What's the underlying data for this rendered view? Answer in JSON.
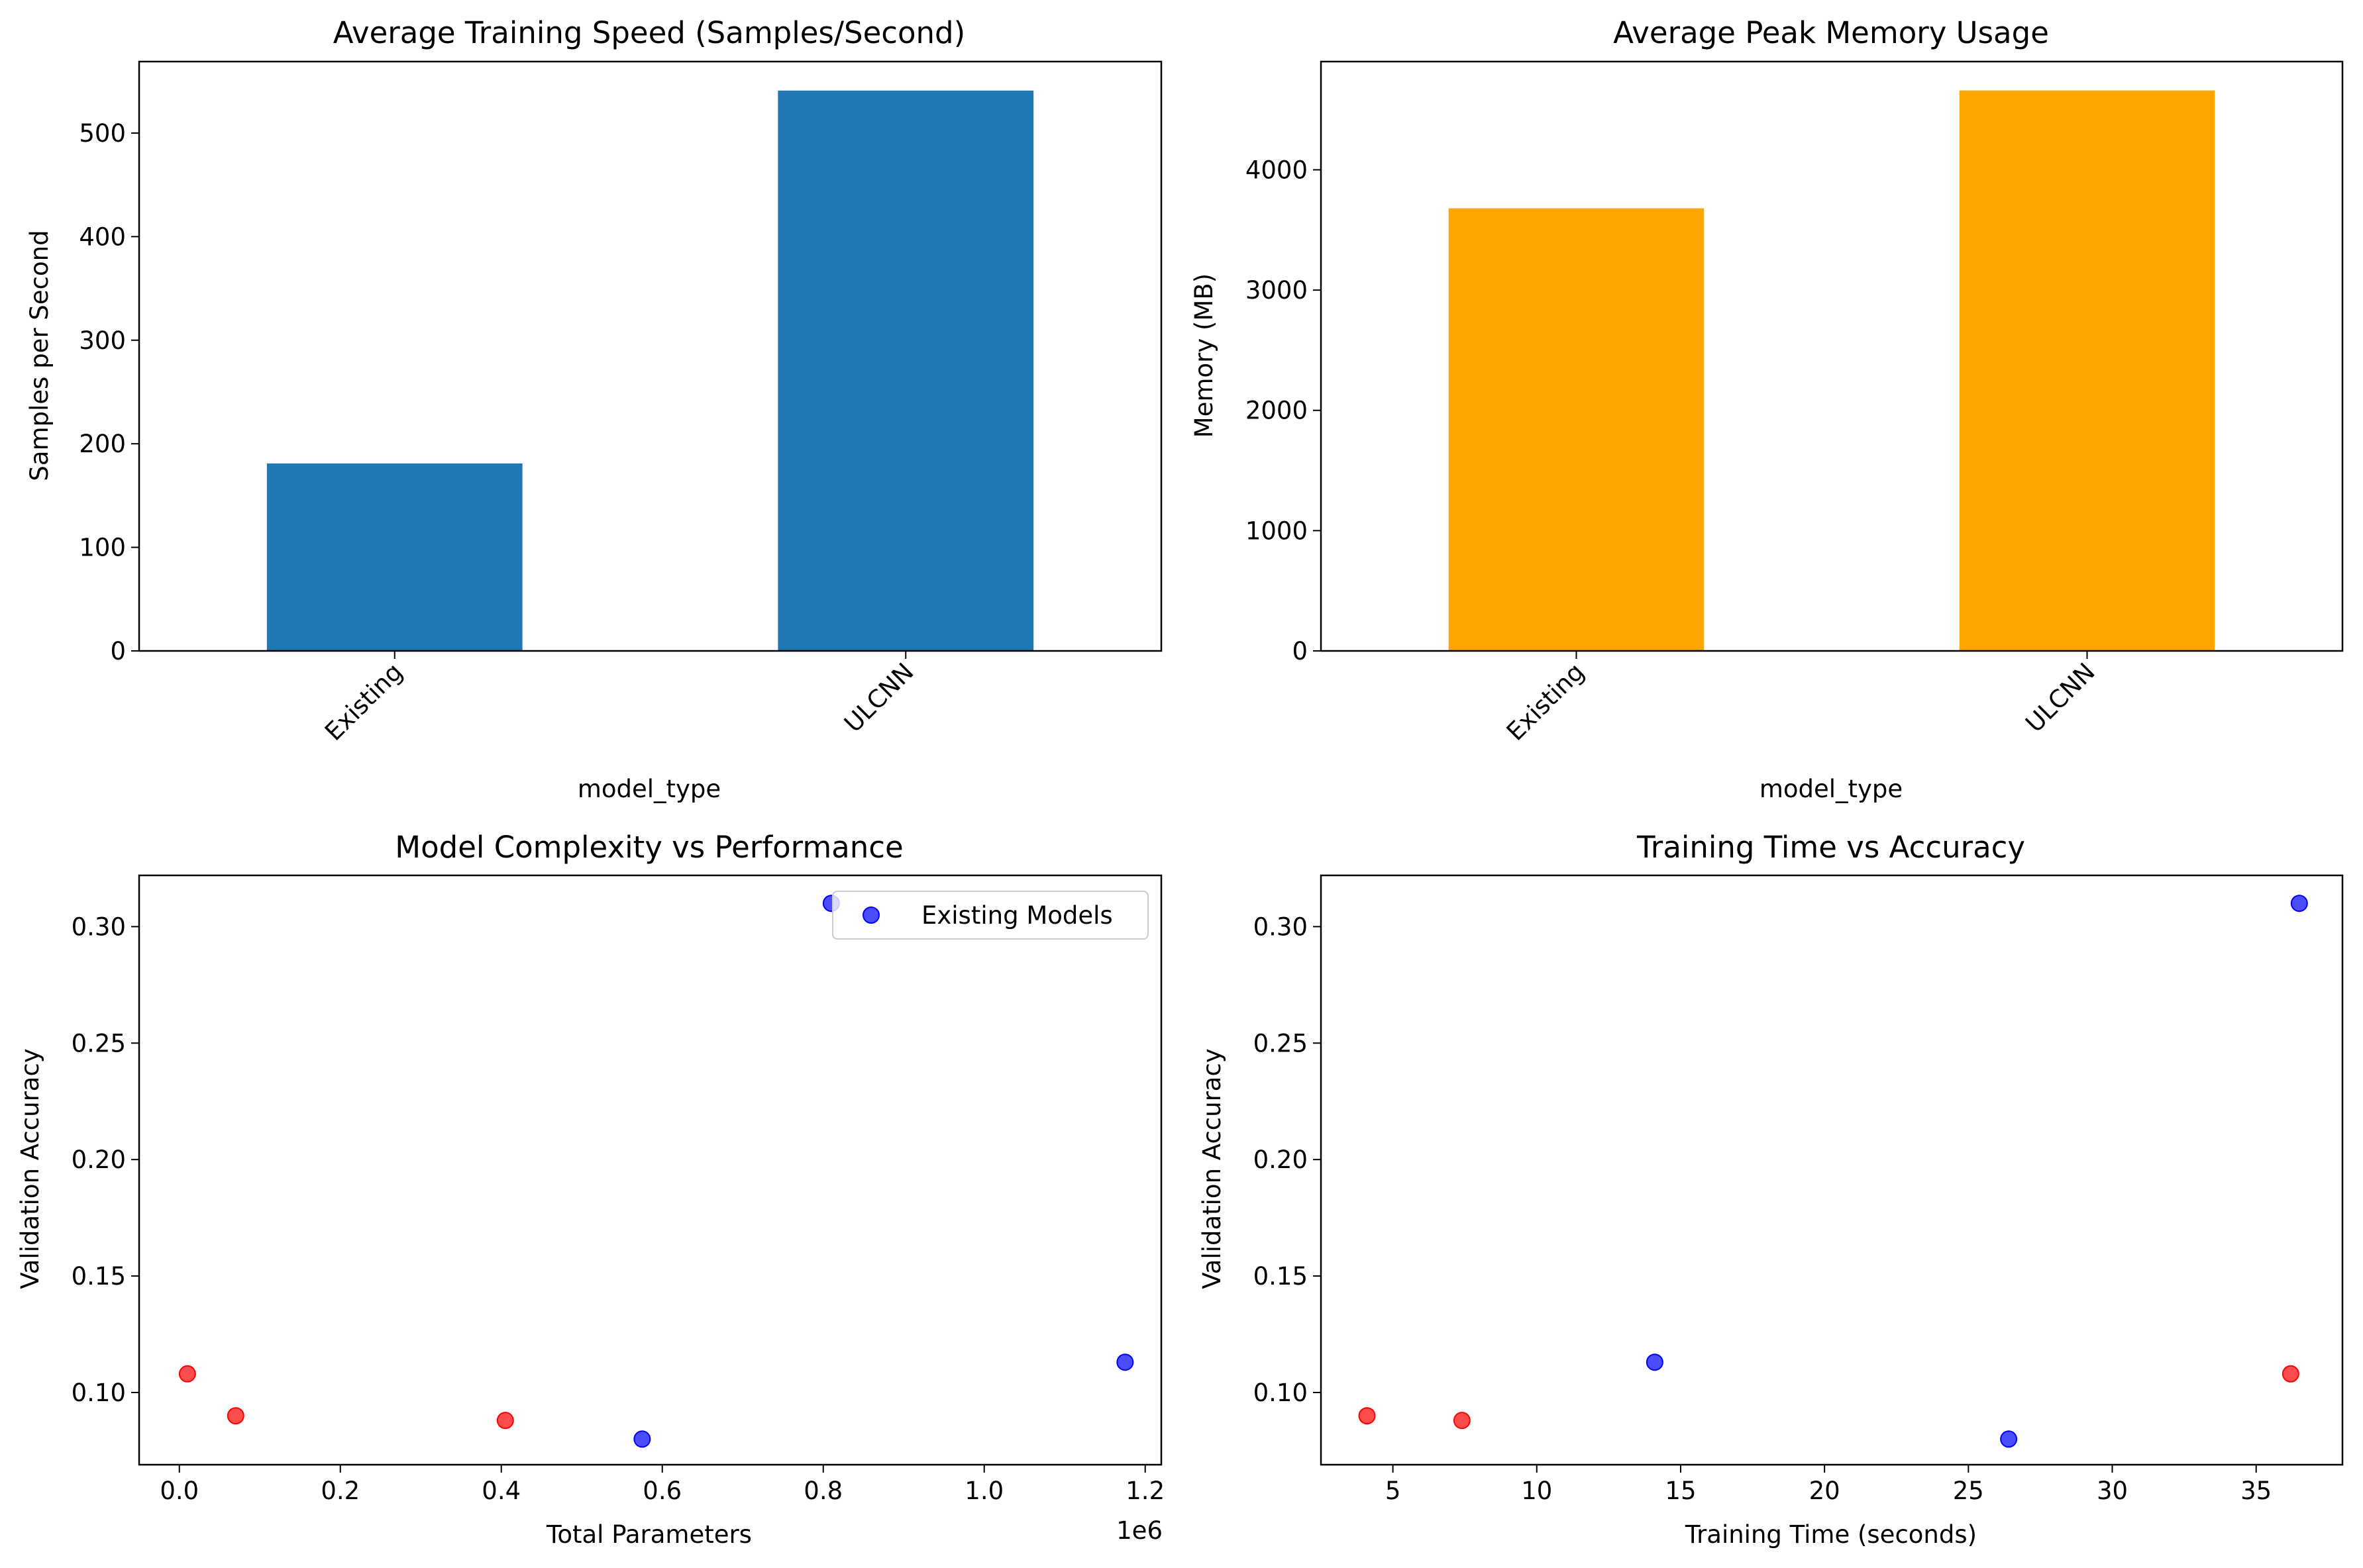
{
  "chart_data": [
    {
      "type": "bar",
      "title": "Average Training Speed (Samples/Second)",
      "xlabel": "model_type",
      "ylabel": "Samples per Second",
      "categories": [
        "Existing",
        "ULCNN"
      ],
      "values": [
        181,
        541
      ],
      "ylim": [
        0,
        569
      ],
      "yticks": [
        0,
        100,
        200,
        300,
        400,
        500
      ],
      "color": "#1f77b4",
      "grid": false
    },
    {
      "type": "bar",
      "title": "Average Peak Memory Usage",
      "xlabel": "model_type",
      "ylabel": "Memory (MB)",
      "categories": [
        "Existing",
        "ULCNN"
      ],
      "values": [
        3680,
        4660
      ],
      "ylim": [
        0,
        4900
      ],
      "yticks": [
        0,
        1000,
        2000,
        3000,
        4000
      ],
      "color": "#ffa500",
      "grid": false
    },
    {
      "type": "scatter",
      "title": "Model Complexity vs Performance",
      "xlabel": "Total Parameters",
      "ylabel": "Validation Accuracy",
      "x_offset_label": "1e6",
      "xlim": [
        -0.05,
        1.22
      ],
      "ylim": [
        0.069,
        0.322
      ],
      "xticks": [
        0.0,
        0.2,
        0.4,
        0.6,
        0.8,
        1.0,
        1.2
      ],
      "xtick_labels": [
        "0.0",
        "0.2",
        "0.4",
        "0.6",
        "0.8",
        "1.0",
        "1.2"
      ],
      "yticks": [
        0.1,
        0.15,
        0.2,
        0.25,
        0.3
      ],
      "ytick_labels": [
        "0.10",
        "0.15",
        "0.20",
        "0.25",
        "0.30"
      ],
      "legend_position": "top-right",
      "series": [
        {
          "name": "Existing Models",
          "color": "#0000ff",
          "points": [
            [
              0.81,
              0.31
            ],
            [
              0.575,
              0.08
            ],
            [
              1.175,
              0.113
            ]
          ]
        },
        {
          "color": "#ff0000",
          "points": [
            [
              0.01,
              0.108
            ],
            [
              0.07,
              0.09
            ],
            [
              0.405,
              0.088
            ]
          ]
        }
      ],
      "grid": false
    },
    {
      "type": "scatter",
      "title": "Training Time vs Accuracy",
      "xlabel": "Training Time (seconds)",
      "ylabel": "Validation Accuracy",
      "xlim": [
        2.5,
        38.0
      ],
      "ylim": [
        0.069,
        0.322
      ],
      "xticks": [
        5,
        10,
        15,
        20,
        25,
        30,
        35
      ],
      "xtick_labels": [
        "5",
        "10",
        "15",
        "20",
        "25",
        "30",
        "35"
      ],
      "yticks": [
        0.1,
        0.15,
        0.2,
        0.25,
        0.3
      ],
      "ytick_labels": [
        "0.10",
        "0.15",
        "0.20",
        "0.25",
        "0.30"
      ],
      "series": [
        {
          "color": "#0000ff",
          "points": [
            [
              36.5,
              0.31
            ],
            [
              14.1,
              0.113
            ],
            [
              26.4,
              0.08
            ]
          ]
        },
        {
          "color": "#ff0000",
          "points": [
            [
              36.2,
              0.108
            ],
            [
              4.1,
              0.09
            ],
            [
              7.4,
              0.088
            ]
          ]
        }
      ],
      "grid": false
    }
  ]
}
